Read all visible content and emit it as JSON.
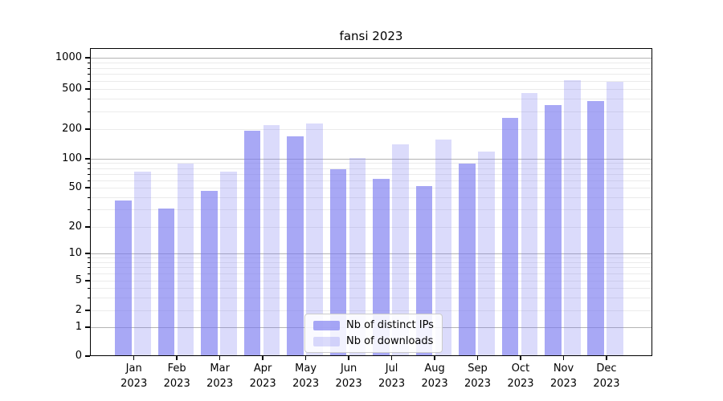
{
  "chart_data": {
    "type": "bar",
    "title": "fansi 2023",
    "categories": [
      "Jan 2023",
      "Feb 2023",
      "Mar 2023",
      "Apr 2023",
      "May 2023",
      "Jun 2023",
      "Jul 2023",
      "Aug 2023",
      "Sep 2023",
      "Oct 2023",
      "Nov 2023",
      "Dec 2023"
    ],
    "x_months": [
      "Jan",
      "Feb",
      "Mar",
      "Apr",
      "May",
      "Jun",
      "Jul",
      "Aug",
      "Sep",
      "Oct",
      "Nov",
      "Dec"
    ],
    "x_year": "2023",
    "series": [
      {
        "name": "Nb of distinct IPs",
        "values": [
          37,
          31,
          46,
          192,
          170,
          78,
          62,
          52,
          89,
          258,
          345,
          378
        ],
        "color": "#7a7af0",
        "opacity": 0.65
      },
      {
        "name": "Nb of downloads",
        "values": [
          73,
          89,
          74,
          218,
          226,
          101,
          140,
          156,
          119,
          460,
          610,
          585
        ],
        "color": "#7a7af0",
        "opacity": 0.27
      }
    ],
    "yscale": "symlog",
    "y_ticks": [
      0,
      1,
      2,
      5,
      10,
      20,
      50,
      100,
      200,
      500,
      1000
    ],
    "y_tick_labels": [
      "0",
      "1",
      "2",
      "5",
      "10",
      "20",
      "50",
      "100",
      "200",
      "500",
      "1000"
    ],
    "y_minor_ticks": [
      2,
      3,
      4,
      5,
      6,
      7,
      8,
      9,
      20,
      30,
      40,
      50,
      60,
      70,
      80,
      90,
      200,
      300,
      400,
      500,
      600,
      700,
      800,
      900
    ],
    "ylim": [
      0,
      1250
    ],
    "grid": true,
    "legend_position": "lower center",
    "colors": {
      "bar_base": "#7a7af0",
      "major_grid": "#b3b3b3",
      "minor_grid": "#ebebeb",
      "axis": "#000000",
      "background": "#ffffff"
    }
  }
}
